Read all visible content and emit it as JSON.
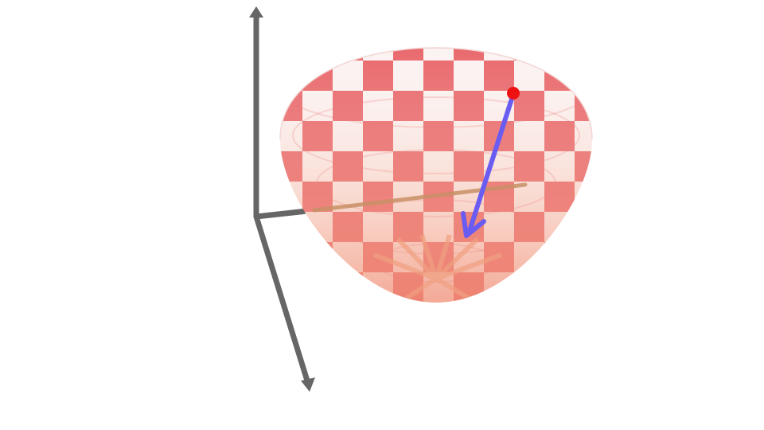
{
  "scene": {
    "kind": "3d-surface-plot",
    "surface": "paraboloid",
    "pattern": "checkerboard",
    "colors": {
      "background": "#ffffff",
      "surface_primary": "#e8676b",
      "surface_secondary": "#fbf3f2",
      "surface_bottom": "#f0a080",
      "axis": "#666666",
      "point": "#ee1111",
      "gradient_arrow": "#6a5cf0",
      "inner_line": "#c89066"
    },
    "axes": {
      "count": 3,
      "arrows": [
        "z-axis-arrow",
        "x-axis-arrow",
        "y-axis-arrow"
      ]
    },
    "marker": {
      "name": "red-point",
      "count": 1
    },
    "arrow": {
      "name": "gradient-vector",
      "count": 1
    }
  }
}
